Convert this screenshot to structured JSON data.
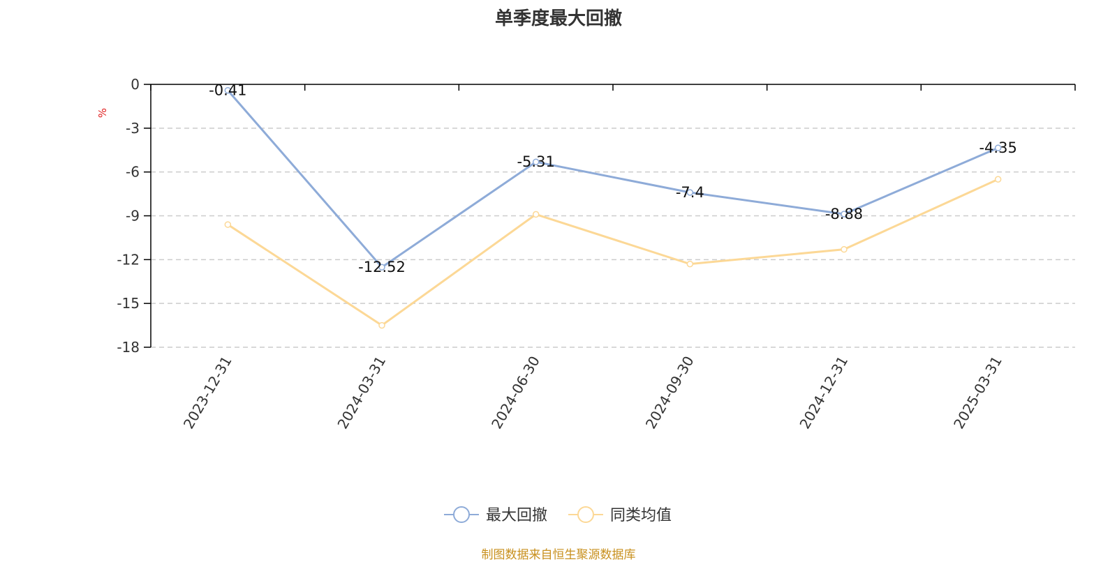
{
  "chart_data": {
    "type": "line",
    "title": "单季度最大回撤",
    "ylabel": "%",
    "categories": [
      "2023-12-31",
      "2024-03-31",
      "2024-06-30",
      "2024-09-30",
      "2024-12-31",
      "2025-03-31"
    ],
    "ylim": [
      -18,
      0
    ],
    "yticks": [
      "0",
      "-3",
      "-6",
      "-9",
      "-12",
      "-15",
      "-18"
    ],
    "grid": true,
    "legend_position": "bottom",
    "series": [
      {
        "name": "最大回撤",
        "values": [
          -0.41,
          -12.52,
          -5.31,
          -7.4,
          -8.88,
          -4.35
        ],
        "labels": [
          "-0.41",
          "-12.52",
          "-5.31",
          "-7.4",
          "-8.88",
          "-4.35"
        ],
        "color": "#8eabd8"
      },
      {
        "name": "同类均值",
        "values": [
          -9.6,
          -16.5,
          -8.9,
          -12.3,
          -11.3,
          -6.5
        ],
        "color": "#fcd896"
      }
    ]
  },
  "footer": {
    "source": "制图数据来自恒生聚源数据库"
  },
  "colors": {
    "axis": "#000000",
    "grid": "#cccccc",
    "unit": "#e02020"
  }
}
